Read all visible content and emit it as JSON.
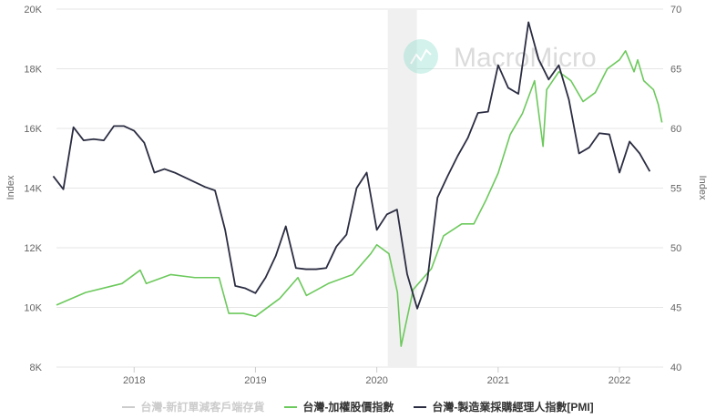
{
  "watermark": "MacroMicro",
  "chart_data": {
    "type": "line",
    "xlabel": "",
    "ylabel_left": "Index",
    "ylabel_right": "Index",
    "ylim_left": [
      8000,
      20000
    ],
    "ylim_right": [
      40,
      70
    ],
    "xlim": [
      2017.36,
      2022.36
    ],
    "grid": true,
    "legend_placement": "bottom",
    "x_tick_labels": [
      "2018",
      "2019",
      "2020",
      "2021",
      "2022"
    ],
    "y_left_tick_labels": [
      "8K",
      "10K",
      "12K",
      "14K",
      "16K",
      "18K",
      "20K"
    ],
    "y_right_tick_labels": [
      "40",
      "45",
      "50",
      "55",
      "60",
      "65",
      "70"
    ],
    "shaded_period": {
      "start": 2020.09,
      "end": 2020.33,
      "color": "#f0f0f0"
    },
    "series": [
      {
        "name": "台灣-新訂單減客戶端存貨",
        "color": "#cccccc",
        "axis": "right",
        "hidden": true,
        "points": []
      },
      {
        "name": "台灣-加權股價指數",
        "color": "#6cc95c",
        "axis": "left",
        "points": [
          [
            2017.36,
            10080
          ],
          [
            2017.6,
            10500
          ],
          [
            2017.9,
            10800
          ],
          [
            2018.05,
            11250
          ],
          [
            2018.1,
            10800
          ],
          [
            2018.3,
            11100
          ],
          [
            2018.5,
            11000
          ],
          [
            2018.7,
            11000
          ],
          [
            2018.78,
            9800
          ],
          [
            2018.9,
            9800
          ],
          [
            2019.0,
            9700
          ],
          [
            2019.2,
            10300
          ],
          [
            2019.35,
            11000
          ],
          [
            2019.42,
            10400
          ],
          [
            2019.6,
            10800
          ],
          [
            2019.8,
            11100
          ],
          [
            2019.95,
            11800
          ],
          [
            2020.0,
            12100
          ],
          [
            2020.1,
            11800
          ],
          [
            2020.17,
            10500
          ],
          [
            2020.2,
            8700
          ],
          [
            2020.3,
            10600
          ],
          [
            2020.45,
            11300
          ],
          [
            2020.55,
            12400
          ],
          [
            2020.7,
            12800
          ],
          [
            2020.8,
            12800
          ],
          [
            2020.9,
            13600
          ],
          [
            2021.0,
            14500
          ],
          [
            2021.1,
            15800
          ],
          [
            2021.2,
            16500
          ],
          [
            2021.3,
            17600
          ],
          [
            2021.37,
            15400
          ],
          [
            2021.4,
            17300
          ],
          [
            2021.5,
            17900
          ],
          [
            2021.6,
            17600
          ],
          [
            2021.7,
            16900
          ],
          [
            2021.8,
            17200
          ],
          [
            2021.9,
            18000
          ],
          [
            2022.0,
            18300
          ],
          [
            2022.05,
            18600
          ],
          [
            2022.12,
            17900
          ],
          [
            2022.15,
            18300
          ],
          [
            2022.2,
            17600
          ],
          [
            2022.28,
            17300
          ],
          [
            2022.32,
            16800
          ],
          [
            2022.35,
            16200
          ]
        ]
      },
      {
        "name": "台灣-製造業採購經理人指數[PMI]",
        "color": "#2b2d42",
        "axis": "right",
        "start": "2017-04",
        "values": [
          56.0,
          54.9,
          60.1,
          59.0,
          59.1,
          59.0,
          60.2,
          60.2,
          59.8,
          58.8,
          56.3,
          56.6,
          56.3,
          55.9,
          55.5,
          55.1,
          54.8,
          51.5,
          46.8,
          46.6,
          46.2,
          47.5,
          49.3,
          51.8,
          48.3,
          48.2,
          48.2,
          48.3,
          50.1,
          51.1,
          55.0,
          56.3,
          51.5,
          52.8,
          53.2,
          47.8,
          44.9,
          47.3,
          54.2,
          56.0,
          57.7,
          59.2,
          61.3,
          61.4,
          65.3,
          63.4,
          62.9,
          68.9,
          65.8,
          64.1,
          65.3,
          62.4,
          57.9,
          58.4,
          59.6,
          59.5,
          56.3,
          58.9,
          57.9,
          56.4
        ]
      }
    ]
  }
}
